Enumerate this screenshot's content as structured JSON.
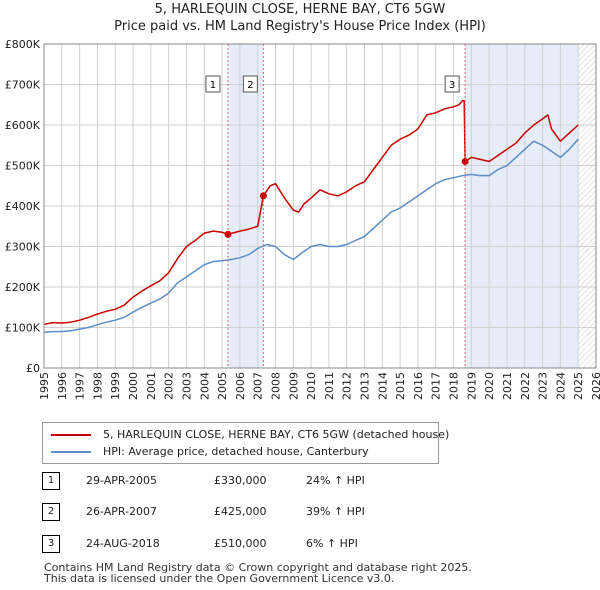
{
  "title_line1": "5, HARLEQUIN CLOSE, HERNE BAY, CT6 5GW",
  "title_line2": "Price paid vs. HM Land Registry's House Price Index (HPI)",
  "chart_data": {
    "type": "line",
    "title": "5, HARLEQUIN CLOSE, HERNE BAY, CT6 5GW — Price paid vs. HM Land Registry's House Price Index (HPI)",
    "xlabel": "",
    "ylabel": "",
    "xlim": [
      1995,
      2026
    ],
    "ylim": [
      0,
      800000
    ],
    "x_ticks": [
      "1995",
      "1996",
      "1997",
      "1998",
      "1999",
      "2000",
      "2001",
      "2002",
      "2003",
      "2004",
      "2005",
      "2006",
      "2007",
      "2008",
      "2009",
      "2010",
      "2011",
      "2012",
      "2013",
      "2014",
      "2015",
      "2016",
      "2017",
      "2018",
      "2019",
      "2020",
      "2021",
      "2022",
      "2023",
      "2024",
      "2025",
      "2026"
    ],
    "y_ticks": [
      {
        "value": 0,
        "label": "£0"
      },
      {
        "value": 100000,
        "label": "£100K"
      },
      {
        "value": 200000,
        "label": "£200K"
      },
      {
        "value": 300000,
        "label": "£300K"
      },
      {
        "value": 400000,
        "label": "£400K"
      },
      {
        "value": 500000,
        "label": "£500K"
      },
      {
        "value": 600000,
        "label": "£600K"
      },
      {
        "value": 700000,
        "label": "£700K"
      },
      {
        "value": 800000,
        "label": "£800K"
      }
    ],
    "grid": true,
    "shaded_periods": [
      [
        2005.33,
        2007.32
      ],
      [
        2018.65,
        2025.0
      ]
    ],
    "projection_start": 2025.0,
    "series": [
      {
        "name": "5, HARLEQUIN CLOSE, HERNE BAY, CT6 5GW (detached house)",
        "color": "#cc0000",
        "x": [
          1995,
          1995.5,
          1996,
          1996.5,
          1997,
          1997.5,
          1998,
          1998.5,
          1999,
          1999.5,
          2000,
          2000.5,
          2001,
          2001.5,
          2002,
          2002.5,
          2003,
          2003.5,
          2004,
          2004.5,
          2005,
          2005.33,
          2006,
          2006.5,
          2007,
          2007.32,
          2007.7,
          2008,
          2008.5,
          2009,
          2009.3,
          2009.6,
          2010,
          2010.5,
          2011,
          2011.5,
          2012,
          2012.5,
          2013,
          2013.5,
          2014,
          2014.5,
          2015,
          2015.5,
          2016,
          2016.5,
          2017,
          2017.5,
          2018,
          2018.3,
          2018.5,
          2018.6,
          2018.65,
          2019,
          2019.5,
          2020,
          2020.5,
          2021,
          2021.5,
          2022,
          2022.5,
          2023,
          2023.3,
          2023.5,
          2024,
          2024.5,
          2025
        ],
        "values": [
          108000,
          112000,
          111000,
          113000,
          118000,
          125000,
          133000,
          140000,
          145000,
          155000,
          175000,
          190000,
          203000,
          215000,
          235000,
          270000,
          300000,
          315000,
          333000,
          338000,
          335000,
          330000,
          338000,
          343000,
          350000,
          425000,
          450000,
          455000,
          420000,
          390000,
          385000,
          405000,
          420000,
          440000,
          430000,
          425000,
          435000,
          450000,
          460000,
          490000,
          520000,
          550000,
          565000,
          575000,
          590000,
          625000,
          630000,
          640000,
          645000,
          650000,
          660000,
          660000,
          510000,
          520000,
          515000,
          510000,
          525000,
          540000,
          555000,
          580000,
          600000,
          615000,
          625000,
          590000,
          560000,
          580000,
          600000
        ]
      },
      {
        "name": "HPI: Average price, detached house, Canterbury",
        "color": "#5b8ec9",
        "x": [
          1995,
          1995.5,
          1996,
          1996.5,
          1997,
          1997.5,
          1998,
          1998.5,
          1999,
          1999.5,
          2000,
          2000.5,
          2001,
          2001.5,
          2002,
          2002.5,
          2003,
          2003.5,
          2004,
          2004.5,
          2005,
          2005.5,
          2006,
          2006.5,
          2007,
          2007.5,
          2008,
          2008.5,
          2009,
          2009.5,
          2010,
          2010.5,
          2011,
          2011.5,
          2012,
          2012.5,
          2013,
          2013.5,
          2014,
          2014.5,
          2015,
          2015.5,
          2016,
          2016.5,
          2017,
          2017.5,
          2018,
          2018.5,
          2019,
          2019.5,
          2020,
          2020.5,
          2021,
          2021.5,
          2022,
          2022.5,
          2023,
          2023.5,
          2024,
          2024.5,
          2025
        ],
        "values": [
          88000,
          90000,
          90000,
          92000,
          96000,
          100000,
          107000,
          113000,
          118000,
          125000,
          138000,
          150000,
          160000,
          170000,
          185000,
          210000,
          225000,
          240000,
          255000,
          263000,
          265000,
          268000,
          272000,
          280000,
          295000,
          305000,
          300000,
          280000,
          268000,
          285000,
          300000,
          305000,
          300000,
          300000,
          305000,
          315000,
          325000,
          345000,
          365000,
          385000,
          395000,
          410000,
          425000,
          440000,
          455000,
          465000,
          470000,
          475000,
          478000,
          475000,
          475000,
          490000,
          500000,
          520000,
          540000,
          560000,
          550000,
          535000,
          520000,
          540000,
          565000
        ]
      }
    ],
    "annotations": [
      {
        "label": "1",
        "x": 2005.33,
        "y": 330000
      },
      {
        "label": "2",
        "x": 2007.32,
        "y": 425000
      },
      {
        "label": "3",
        "x": 2018.65,
        "y": 510000
      }
    ]
  },
  "legend": {
    "property": "5, HARLEQUIN CLOSE, HERNE BAY, CT6 5GW (detached house)",
    "hpi": "HPI: Average price, detached house, Canterbury"
  },
  "sales": [
    {
      "num": "1",
      "date": "29-APR-2005",
      "price": "£330,000",
      "hpi": "24% ↑ HPI"
    },
    {
      "num": "2",
      "date": "26-APR-2007",
      "price": "£425,000",
      "hpi": "39% ↑ HPI"
    },
    {
      "num": "3",
      "date": "24-AUG-2018",
      "price": "£510,000",
      "hpi": "6% ↑ HPI"
    }
  ],
  "footer": {
    "line1": "Contains HM Land Registry data © Crown copyright and database right 2025.",
    "line2": "This data is licensed under the Open Government Licence v3.0."
  },
  "colors": {
    "property": "#cc0000",
    "hpi": "#5b8ec9",
    "shade": "#e6ecf8",
    "grid": "#d0d0d0"
  }
}
